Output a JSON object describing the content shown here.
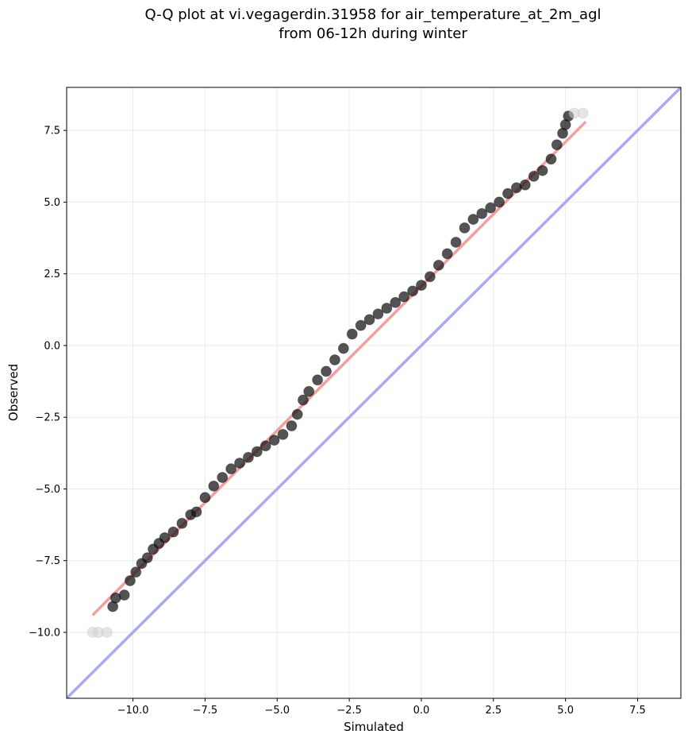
{
  "chart_data": {
    "type": "scatter",
    "title": "Q-Q plot at vi.vegagerdin.31958 for air_temperature_at_2m_agl",
    "subtitle": "from 06-12h during winter",
    "xlabel": "Simulated",
    "ylabel": "Observed",
    "xlim": [
      -12.3,
      9.0
    ],
    "ylim": [
      -12.3,
      9.0
    ],
    "xticks": [
      -10.0,
      -7.5,
      -5.0,
      -2.5,
      0.0,
      2.5,
      5.0,
      7.5
    ],
    "yticks": [
      -10.0,
      -7.5,
      -5.0,
      -2.5,
      0.0,
      2.5,
      5.0,
      7.5
    ],
    "xtick_labels": [
      "−10.0",
      "−7.5",
      "−5.0",
      "−2.5",
      "0.0",
      "2.5",
      "5.0",
      "7.5"
    ],
    "ytick_labels": [
      "−10.0",
      "−7.5",
      "−5.0",
      "−2.5",
      "0.0",
      "2.5",
      "5.0",
      "7.5"
    ],
    "grid": true,
    "quantiles": {
      "x": [
        -11.4,
        -11.2,
        -10.9,
        -10.7,
        -10.6,
        -10.3,
        -10.1,
        -9.9,
        -9.7,
        -9.5,
        -9.3,
        -9.1,
        -8.9,
        -8.6,
        -8.3,
        -8.0,
        -7.8,
        -7.5,
        -7.2,
        -6.9,
        -6.6,
        -6.3,
        -6.0,
        -5.7,
        -5.4,
        -5.1,
        -4.8,
        -4.5,
        -4.3,
        -4.1,
        -3.9,
        -3.6,
        -3.3,
        -3.0,
        -2.7,
        -2.4,
        -2.1,
        -1.8,
        -1.5,
        -1.2,
        -0.9,
        -0.6,
        -0.3,
        0.0,
        0.3,
        0.6,
        0.9,
        1.2,
        1.5,
        1.8,
        2.1,
        2.4,
        2.7,
        3.0,
        3.3,
        3.6,
        3.9,
        4.2,
        4.5,
        4.7,
        4.9,
        5.0,
        5.1,
        5.3,
        5.6
      ],
      "y": [
        -10.0,
        -10.0,
        -10.0,
        -9.1,
        -8.8,
        -8.7,
        -8.2,
        -7.9,
        -7.6,
        -7.4,
        -7.1,
        -6.9,
        -6.7,
        -6.5,
        -6.2,
        -5.9,
        -5.8,
        -5.3,
        -4.9,
        -4.6,
        -4.3,
        -4.1,
        -3.9,
        -3.7,
        -3.5,
        -3.3,
        -3.1,
        -2.8,
        -2.4,
        -1.9,
        -1.6,
        -1.2,
        -0.9,
        -0.5,
        -0.1,
        0.4,
        0.7,
        0.9,
        1.1,
        1.3,
        1.5,
        1.7,
        1.9,
        2.1,
        2.4,
        2.8,
        3.2,
        3.6,
        4.1,
        4.4,
        4.6,
        4.8,
        5.0,
        5.3,
        5.5,
        5.6,
        5.9,
        6.1,
        6.5,
        7.0,
        7.4,
        7.7,
        8.0,
        8.1,
        8.1
      ]
    },
    "fit_line": {
      "x": [
        -11.4,
        5.7
      ],
      "y": [
        -9.4,
        7.8
      ],
      "color": "#f2a09c"
    },
    "identity_line": {
      "x": [
        -12.3,
        9.0
      ],
      "y": [
        -12.3,
        9.0
      ],
      "color": "#a9a9f5"
    },
    "point_color": "#111111"
  }
}
